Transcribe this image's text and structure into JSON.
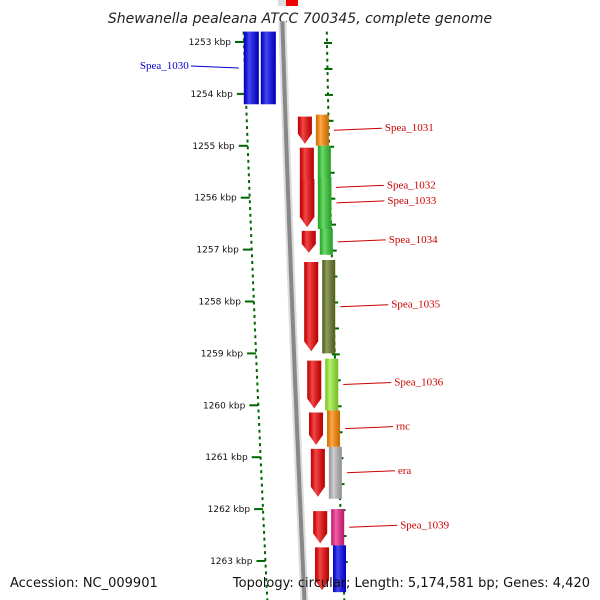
{
  "title": "Shewanella pealeana ATCC 700345, complete genome",
  "footer": {
    "accession": "Accession: NC_009901",
    "summary": "Topology: circular; Length: 5,174,581 bp; Genes: 4,420"
  },
  "ruler": {
    "ticks": [
      {
        "kbp": 1253,
        "label": "1253 kbp"
      },
      {
        "kbp": 1254,
        "label": "1254 kbp"
      },
      {
        "kbp": 1255,
        "label": "1255 kbp"
      },
      {
        "kbp": 1256,
        "label": "1256 kbp"
      },
      {
        "kbp": 1257,
        "label": "1257 kbp"
      },
      {
        "kbp": 1258,
        "label": "1258 kbp"
      },
      {
        "kbp": 1259,
        "label": "1259 kbp"
      },
      {
        "kbp": 1260,
        "label": "1260 kbp"
      },
      {
        "kbp": 1261,
        "label": "1261 kbp"
      },
      {
        "kbp": 1262,
        "label": "1262 kbp"
      },
      {
        "kbp": 1263,
        "label": "1263 kbp"
      }
    ]
  },
  "colors": {
    "reverse_strand": "#0000ee",
    "forward_strand": "#ee0000",
    "reverse_label": "#0000cc",
    "forward_label": "#cc0000",
    "backbone": "#888888",
    "tick": "#006600"
  },
  "genes": [
    {
      "label": "Spea_1030",
      "strand": "reverse",
      "start": 1252.8,
      "end": 1254.2,
      "color": "#0000ee"
    },
    {
      "label": "Spea_1031",
      "strand": "forward",
      "start": 1254.4,
      "end": 1255.0,
      "color": "#ff8800"
    },
    {
      "label": "Spea_1032",
      "strand": "forward",
      "start": 1255.0,
      "end": 1256.6,
      "color": "#33cc33"
    },
    {
      "label": "Spea_1033",
      "strand": "forward",
      "start": 1255.6,
      "end": 1256.6,
      "color": "#33cc33"
    },
    {
      "label": "Spea_1034",
      "strand": "forward",
      "start": 1256.6,
      "end": 1257.1,
      "color": "#33cc33"
    },
    {
      "label": "Spea_1035",
      "strand": "forward",
      "start": 1257.2,
      "end": 1259.0,
      "color": "#667722"
    },
    {
      "label": "Spea_1036",
      "strand": "forward",
      "start": 1259.1,
      "end": 1260.1,
      "color": "#99ee33"
    },
    {
      "label": "rnc",
      "strand": "forward",
      "start": 1260.1,
      "end": 1260.8,
      "color": "#ff8800"
    },
    {
      "label": "era",
      "strand": "forward",
      "start": 1260.8,
      "end": 1261.8,
      "color": "#bbbbbb"
    },
    {
      "label": "Spea_1039",
      "strand": "forward",
      "start": 1262.0,
      "end": 1262.7,
      "color": "#ee2288"
    },
    {
      "label": "",
      "strand": "forward",
      "start": 1262.7,
      "end": 1263.6,
      "color": "#0000ee"
    }
  ]
}
